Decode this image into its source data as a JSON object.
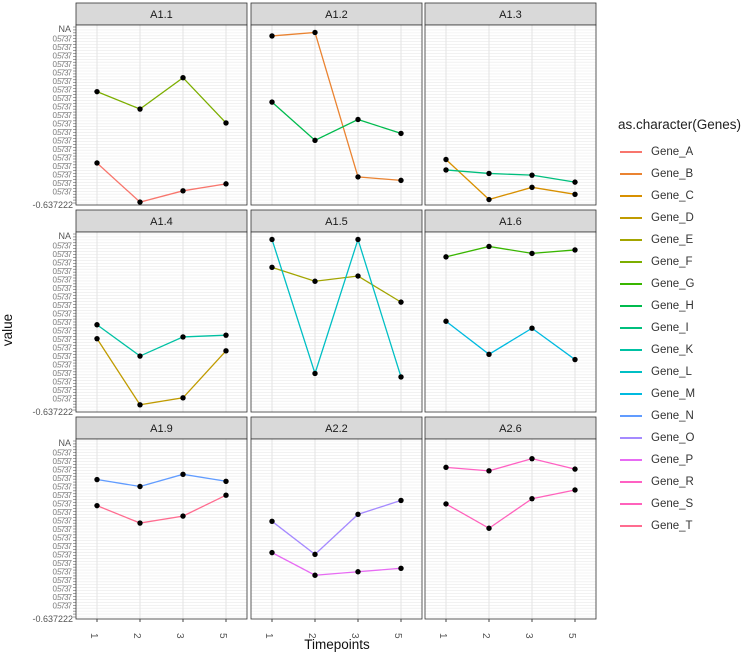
{
  "chart_data": {
    "type": "line",
    "xlabel": "Timepoints",
    "ylabel": "value",
    "x": [
      "1",
      "2",
      "3",
      "5"
    ],
    "y_axis_labels_visible": {
      "top": "NA",
      "bottom": "-0.637222"
    },
    "y_note": "",
    "grid": true,
    "legend": {
      "title": "as.character(Genes)",
      "position": "right"
    },
    "genes": [
      {
        "name": "Gene_A",
        "color": "#F8766D"
      },
      {
        "name": "Gene_B",
        "color": "#EA8331"
      },
      {
        "name": "Gene_C",
        "color": "#D89000"
      },
      {
        "name": "Gene_D",
        "color": "#C09B00"
      },
      {
        "name": "Gene_E",
        "color": "#A3A500"
      },
      {
        "name": "Gene_F",
        "color": "#7CAE00"
      },
      {
        "name": "Gene_G",
        "color": "#39B600"
      },
      {
        "name": "Gene_H",
        "color": "#00BB4E"
      },
      {
        "name": "Gene_I",
        "color": "#00BF7D"
      },
      {
        "name": "Gene_K",
        "color": "#00C1A3"
      },
      {
        "name": "Gene_L",
        "color": "#00BFC4"
      },
      {
        "name": "Gene_M",
        "color": "#00BAE0"
      },
      {
        "name": "Gene_N",
        "color": "#619CFF"
      },
      {
        "name": "Gene_O",
        "color": "#A58AFF"
      },
      {
        "name": "Gene_P",
        "color": "#E76BF3"
      },
      {
        "name": "Gene_R",
        "color": "#FF61C3"
      },
      {
        "name": "Gene_S",
        "color": "#FF62BC"
      },
      {
        "name": "Gene_T",
        "color": "#FF6C90"
      }
    ],
    "facets": [
      {
        "title": "A1.1",
        "series": [
          {
            "gene": "Gene_F",
            "values": [
              0.64,
              0.54,
              0.72,
              0.46
            ]
          },
          {
            "gene": "Gene_A",
            "values": [
              0.23,
              0.005,
              0.07,
              0.11
            ]
          }
        ]
      },
      {
        "title": "A1.2",
        "series": [
          {
            "gene": "Gene_B",
            "values": [
              0.96,
              0.98,
              0.15,
              0.13
            ]
          },
          {
            "gene": "Gene_H",
            "values": [
              0.58,
              0.36,
              0.48,
              0.4
            ]
          }
        ]
      },
      {
        "title": "A1.3",
        "series": [
          {
            "gene": "Gene_C",
            "values": [
              0.25,
              0.02,
              0.09,
              0.05
            ]
          },
          {
            "gene": "Gene_I",
            "values": [
              0.19,
              0.17,
              0.16,
              0.12
            ]
          }
        ]
      },
      {
        "title": "A1.4",
        "series": [
          {
            "gene": "Gene_D",
            "values": [
              0.41,
              0.03,
              0.07,
              0.34
            ]
          },
          {
            "gene": "Gene_K",
            "values": [
              0.49,
              0.31,
              0.42,
              0.43
            ]
          }
        ]
      },
      {
        "title": "A1.5",
        "series": [
          {
            "gene": "Gene_E",
            "values": [
              0.82,
              0.74,
              0.77,
              0.62
            ]
          },
          {
            "gene": "Gene_L",
            "values": [
              0.98,
              0.21,
              0.98,
              0.19
            ]
          }
        ]
      },
      {
        "title": "A1.6",
        "series": [
          {
            "gene": "Gene_G",
            "values": [
              0.88,
              0.94,
              0.9,
              0.92
            ]
          },
          {
            "gene": "Gene_M",
            "values": [
              0.51,
              0.32,
              0.47,
              0.29
            ]
          }
        ]
      },
      {
        "title": "A1.9",
        "series": [
          {
            "gene": "Gene_N",
            "values": [
              0.79,
              0.75,
              0.82,
              0.78
            ]
          },
          {
            "gene": "Gene_T",
            "values": [
              0.64,
              0.54,
              0.58,
              0.7
            ]
          }
        ]
      },
      {
        "title": "A2.2",
        "series": [
          {
            "gene": "Gene_O",
            "values": [
              0.55,
              0.36,
              0.59,
              0.67
            ]
          },
          {
            "gene": "Gene_P",
            "values": [
              0.37,
              0.24,
              0.26,
              0.28
            ]
          }
        ]
      },
      {
        "title": "A2.6",
        "series": [
          {
            "gene": "Gene_R",
            "values": [
              0.86,
              0.84,
              0.91,
              0.85
            ]
          },
          {
            "gene": "Gene_S",
            "values": [
              0.65,
              0.51,
              0.68,
              0.73
            ]
          }
        ]
      }
    ]
  }
}
